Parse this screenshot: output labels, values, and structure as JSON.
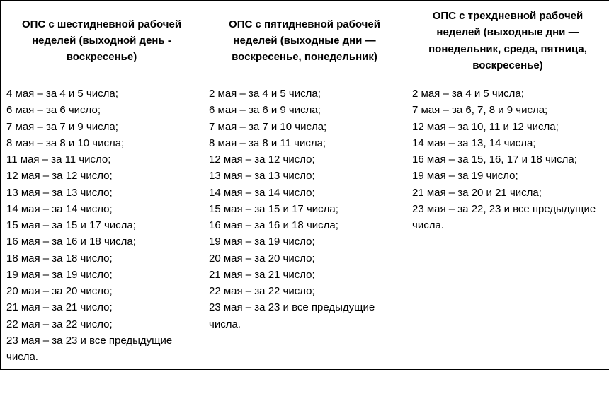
{
  "table": {
    "columns": [
      {
        "header": "ОПС с шестидневной рабочей неделей (выходной день - воскресенье)"
      },
      {
        "header": "ОПС с пятидневной рабочей неделей (выходные дни — воскресенье, понедельник)"
      },
      {
        "header": "ОПС с трехдневной рабочей неделей (выходные дни — понедельник, среда, пятница, воскресенье)"
      }
    ],
    "cells": [
      [
        "4 мая – за 4 и 5 числа;",
        "6 мая – за 6 число;",
        "7 мая – за 7 и 9 числа;",
        "8 мая – за 8 и 10 числа;",
        "11 мая – за 11 число;",
        "12 мая – за 12 число;",
        "13 мая – за 13  число;",
        "14 мая – за 14 число;",
        "15 мая – за 15 и 17 числа;",
        "16 мая – за 16 и 18 числа;",
        "18 мая – за 18 число;",
        "19 мая – за 19 число;",
        "20 мая – за 20 число;",
        "21 мая – за 21 число;",
        "22 мая – за 22 число;",
        "23 мая – за 23 и все предыдущие числа."
      ],
      [
        "2 мая – за 4 и 5 числа;",
        "6 мая – за 6 и 9 числа;",
        "7 мая – за 7  и 10 числа;",
        "8 мая – за 8 и 11 числа;",
        "12 мая – за 12 число;",
        "13 мая – за 13 число;",
        "14 мая – за 14 число;",
        "15 мая – за 15 и 17 числа;",
        "16 мая – за 16 и 18 числа;",
        "19 мая – за 19 число;",
        "20 мая – за 20 число;",
        "21 мая – за 21 число;",
        "22 мая – за 22 число;",
        "23 мая – за 23 и все предыдущие числа."
      ],
      [
        "2 мая – за 4 и 5 числа;",
        "7 мая – за 6, 7, 8 и 9 числа;",
        "12 мая – за 10, 11 и 12 числа;",
        "14 мая – за 13, 14 числа;",
        "16 мая – за 15, 16, 17 и 18 числа;",
        "19 мая – за 19 число;",
        "21 мая – за 20 и 21 числа;",
        "23 мая – за 22, 23 и все предыдущие числа."
      ]
    ],
    "border_color": "#000000",
    "background_color": "#ffffff",
    "text_color": "#000000",
    "font_size_pt": 11,
    "header_font_weight": 700
  }
}
